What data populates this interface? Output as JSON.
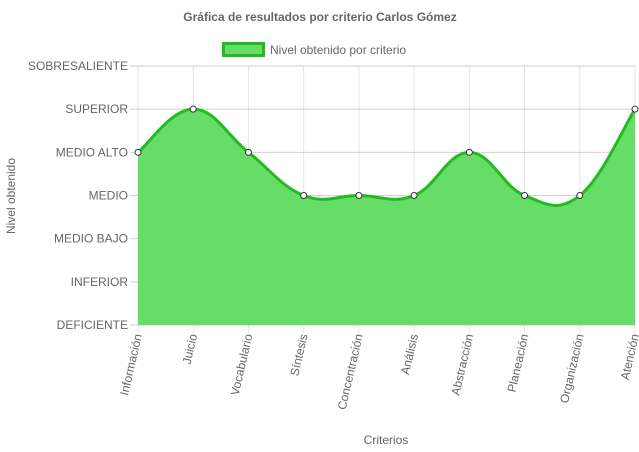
{
  "chart_data": {
    "type": "area",
    "title": "Gráfica de resultados por criterio Carlos Gómez",
    "xlabel": "Criterios",
    "ylabel": "Nivel obtenido",
    "categories": [
      "Información",
      "Juicio",
      "Vocabulario",
      "Síntesis",
      "Concentración",
      "Análisis",
      "Abstracción",
      "Planeación",
      "Organización",
      "Atención"
    ],
    "y_levels": [
      "DEFICIENTE",
      "INFERIOR",
      "MEDIO BAJO",
      "MEDIO",
      "MEDIO ALTO",
      "SUPERIOR",
      "SOBRESALIENTE"
    ],
    "ylim": [
      0,
      6
    ],
    "grid": true,
    "legend_position": "top",
    "series": [
      {
        "name": "Nivel obtenido por criterio",
        "values": [
          4,
          5,
          4,
          3,
          3,
          3,
          4,
          3,
          3,
          5
        ],
        "fill_color": "#66dd66",
        "line_color": "#22bb22",
        "point_color": "#ffffff"
      }
    ]
  }
}
